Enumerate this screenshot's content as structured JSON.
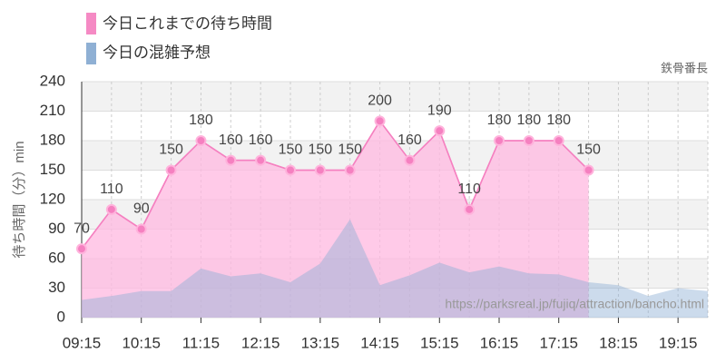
{
  "chart_data": {
    "type": "area",
    "ylabel": "待ち時間（分）min",
    "credit": "鉄骨番長",
    "watermark": "https://parksreal.jp/fujiq/attraction/bancho.html",
    "categories": [
      "09:15",
      null,
      "10:15",
      null,
      "11:15",
      null,
      "12:15",
      null,
      "13:15",
      null,
      "14:15",
      null,
      "15:15",
      null,
      "16:15",
      null,
      "17:15",
      null,
      "18:15",
      null,
      "19:15",
      null
    ],
    "series": [
      {
        "name": "今日これまでの待ち時間",
        "color": "#f580c0",
        "values": [
          70,
          110,
          90,
          150,
          180,
          160,
          160,
          150,
          150,
          150,
          200,
          160,
          190,
          110,
          180,
          180,
          180,
          150,
          null,
          null,
          null,
          null
        ]
      },
      {
        "name": "今日の混雑予想",
        "color": "#8fb0d4",
        "values": [
          18,
          22,
          27,
          27,
          50,
          42,
          45,
          36,
          55,
          100,
          33,
          43,
          56,
          46,
          52,
          45,
          44,
          36,
          33,
          22,
          30,
          27
        ]
      }
    ],
    "ylim": [
      0,
      240
    ],
    "yticks": [
      0,
      30,
      60,
      90,
      120,
      150,
      180,
      210,
      240
    ],
    "grid": true
  }
}
